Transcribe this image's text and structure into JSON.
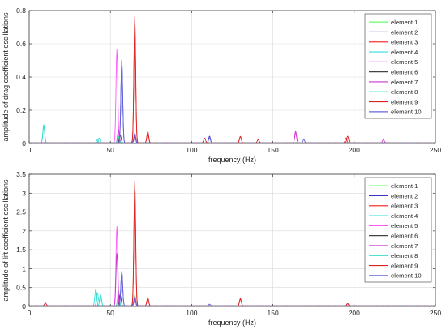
{
  "chart_data": [
    {
      "type": "line",
      "xlabel": "frequency (Hz)",
      "ylabel": "amplitude of drag coefficient oscillations",
      "xlim": [
        0,
        250
      ],
      "ylim": [
        0,
        0.8
      ],
      "xticks": [
        0,
        50,
        100,
        150,
        200,
        250
      ],
      "yticks": [
        0,
        0.2,
        0.4,
        0.6,
        0.8
      ],
      "xtick_labels": [
        "0",
        "50",
        "100",
        "150",
        "200",
        "250"
      ],
      "ytick_labels": [
        "0",
        "0.2",
        "0.4",
        "0.6",
        "0.8"
      ],
      "grid": true,
      "legend_position": "top-right",
      "series": [
        {
          "name": "element 1",
          "color": "#66ff66",
          "peaks": [
            [
              55,
              0.03
            ],
            [
              65,
              0.05
            ]
          ]
        },
        {
          "name": "element 2",
          "color": "#3333cc",
          "peaks": [
            [
              57,
              0.5
            ],
            [
              65,
              0.05
            ],
            [
              111,
              0.04
            ]
          ]
        },
        {
          "name": "element 3",
          "color": "#ff3333",
          "peaks": [
            [
              65,
              0.7
            ],
            [
              73,
              0.06
            ],
            [
              130,
              0.04
            ],
            [
              195,
              0.03
            ]
          ]
        },
        {
          "name": "element 4",
          "color": "#33dddd",
          "peaks": [
            [
              9,
              0.11
            ],
            [
              43,
              0.03
            ],
            [
              55,
              0.04
            ]
          ]
        },
        {
          "name": "element 5",
          "color": "#ff55ff",
          "peaks": [
            [
              54,
              0.56
            ],
            [
              65,
              0.04
            ],
            [
              164,
              0.06
            ]
          ]
        },
        {
          "name": "element 6",
          "color": "#444444",
          "peaks": [
            [
              56,
              0.05
            ],
            [
              65,
              0.04
            ]
          ]
        },
        {
          "name": "element 7",
          "color": "#cc33cc",
          "peaks": [
            [
              55,
              0.08
            ],
            [
              65,
              0.05
            ],
            [
              164,
              0.07
            ],
            [
              218,
              0.02
            ]
          ]
        },
        {
          "name": "element 8",
          "color": "#33ddcc",
          "peaks": [
            [
              9,
              0.1
            ],
            [
              42,
              0.02
            ],
            [
              55,
              0.04
            ]
          ]
        },
        {
          "name": "element 9",
          "color": "#dd2222",
          "peaks": [
            [
              65,
              0.76
            ],
            [
              73,
              0.07
            ],
            [
              108,
              0.03
            ],
            [
              130,
              0.04
            ],
            [
              141,
              0.02
            ],
            [
              196,
              0.04
            ]
          ]
        },
        {
          "name": "element 10",
          "color": "#6666dd",
          "peaks": [
            [
              57,
              0.48
            ],
            [
              65,
              0.06
            ],
            [
              111,
              0.03
            ],
            [
              169,
              0.02
            ]
          ]
        }
      ]
    },
    {
      "type": "line",
      "xlabel": "frequency (Hz)",
      "ylabel": "amplitude of lift coefficient oscillations",
      "xlim": [
        0,
        250
      ],
      "ylim": [
        0,
        3.5
      ],
      "xticks": [
        0,
        50,
        100,
        150,
        200,
        250
      ],
      "yticks": [
        0,
        0.5,
        1,
        1.5,
        2,
        2.5,
        3,
        3.5
      ],
      "xtick_labels": [
        "0",
        "50",
        "100",
        "150",
        "200",
        "250"
      ],
      "ytick_labels": [
        "0",
        "0.5",
        "1",
        "1.5",
        "2",
        "2.5",
        "3",
        "3.5"
      ],
      "grid": true,
      "legend_position": "top-right",
      "series": [
        {
          "name": "element 1",
          "color": "#66ff66",
          "peaks": [
            [
              55,
              0.2
            ],
            [
              65,
              0.3
            ]
          ]
        },
        {
          "name": "element 2",
          "color": "#3333cc",
          "peaks": [
            [
              57,
              0.92
            ],
            [
              65,
              0.2
            ]
          ]
        },
        {
          "name": "element 3",
          "color": "#ff3333",
          "peaks": [
            [
              65,
              3.0
            ],
            [
              73,
              0.2
            ],
            [
              130,
              0.18
            ],
            [
              196,
              0.06
            ]
          ]
        },
        {
          "name": "element 4",
          "color": "#33dddd",
          "peaks": [
            [
              41,
              0.45
            ],
            [
              44,
              0.3
            ],
            [
              55,
              0.4
            ]
          ]
        },
        {
          "name": "element 5",
          "color": "#ff55ff",
          "peaks": [
            [
              54,
              2.1
            ],
            [
              65,
              0.2
            ]
          ]
        },
        {
          "name": "element 6",
          "color": "#444444",
          "peaks": [
            [
              56,
              0.3
            ],
            [
              65,
              0.2
            ]
          ]
        },
        {
          "name": "element 7",
          "color": "#cc33cc",
          "peaks": [
            [
              54,
              1.4
            ],
            [
              65,
              0.25
            ]
          ]
        },
        {
          "name": "element 8",
          "color": "#33ddcc",
          "peaks": [
            [
              42,
              0.35
            ],
            [
              44,
              0.25
            ]
          ]
        },
        {
          "name": "element 9",
          "color": "#dd2222",
          "peaks": [
            [
              10,
              0.08
            ],
            [
              65,
              3.3
            ],
            [
              73,
              0.22
            ],
            [
              130,
              0.2
            ],
            [
              196,
              0.06
            ]
          ]
        },
        {
          "name": "element 10",
          "color": "#6666dd",
          "peaks": [
            [
              57,
              0.9
            ],
            [
              65,
              0.2
            ],
            [
              111,
              0.05
            ]
          ]
        }
      ]
    }
  ]
}
